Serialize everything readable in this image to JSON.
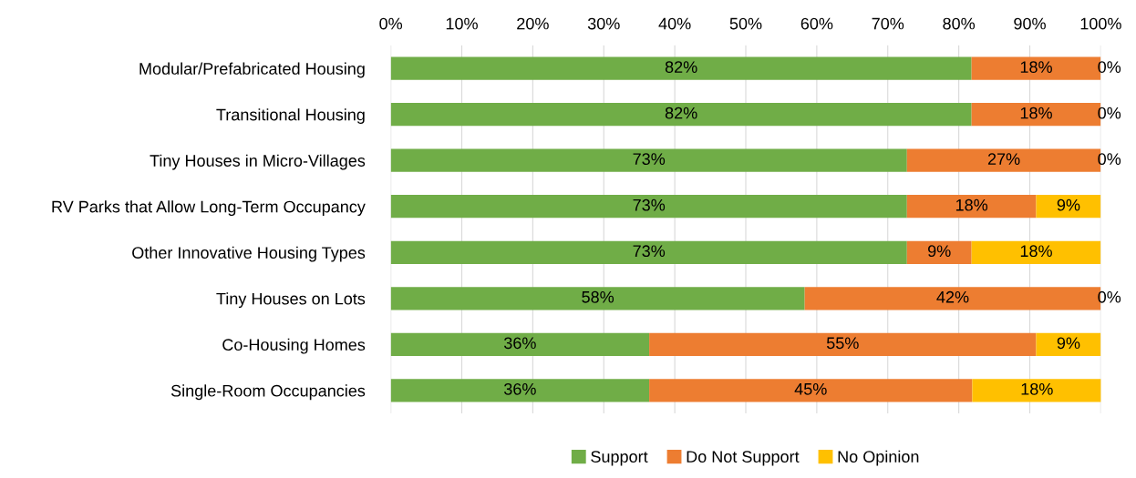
{
  "chart_data": {
    "type": "bar",
    "orientation": "horizontal",
    "stacked": true,
    "categories": [
      "Modular/Prefabricated Housing",
      "Transitional Housing",
      "Tiny Houses in Micro-Villages",
      "RV Parks that Allow Long-Term Occupancy",
      "Other Innovative Housing Types",
      "Tiny Houses on Lots",
      "Co-Housing Homes",
      "Single-Room Occupancies"
    ],
    "series": [
      {
        "name": "Support",
        "color": "#70ad47",
        "values": [
          81.8,
          81.8,
          72.7,
          72.7,
          72.7,
          58.3,
          36.4,
          36.4
        ],
        "value_labels": [
          "82%",
          "82%",
          "73%",
          "73%",
          "73%",
          "58%",
          "36%",
          "36%"
        ]
      },
      {
        "name": "Do Not Support",
        "color": "#ed7d31",
        "values": [
          18.2,
          18.2,
          27.3,
          18.2,
          9.1,
          41.7,
          54.5,
          45.5
        ],
        "value_labels": [
          "18%",
          "18%",
          "27%",
          "18%",
          "9%",
          "42%",
          "55%",
          "45%"
        ]
      },
      {
        "name": "No Opinion",
        "color": "#ffc000",
        "values": [
          0,
          0,
          0,
          9.1,
          18.2,
          0,
          9.1,
          18.2
        ],
        "value_labels": [
          "0%",
          "0%",
          "0%",
          "9%",
          "18%",
          "0%",
          "9%",
          "18%"
        ]
      }
    ],
    "xlim": [
      0,
      100
    ],
    "xticks": [
      {
        "value": 0,
        "label": "0%"
      },
      {
        "value": 10,
        "label": "10%"
      },
      {
        "value": 20,
        "label": "20%"
      },
      {
        "value": 30,
        "label": "30%"
      },
      {
        "value": 40,
        "label": "40%"
      },
      {
        "value": 50,
        "label": "50%"
      },
      {
        "value": 60,
        "label": "60%"
      },
      {
        "value": 70,
        "label": "70%"
      },
      {
        "value": 80,
        "label": "80%"
      },
      {
        "value": 90,
        "label": "90%"
      },
      {
        "value": 100,
        "label": "100%"
      }
    ],
    "grid": "x",
    "legend": "bottom"
  }
}
